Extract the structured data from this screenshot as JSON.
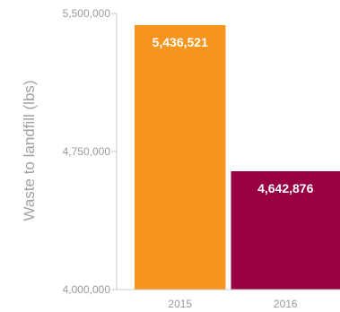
{
  "chart_data": {
    "type": "bar",
    "categories": [
      "2015",
      "2016"
    ],
    "values": [
      5436521,
      4642876
    ],
    "value_labels": [
      "5,436,521",
      "4,642,876"
    ],
    "colors": [
      "#f7941d",
      "#990044"
    ],
    "xlabel": "",
    "ylabel": "Waste to landfill (lbs)",
    "ylim": [
      4000000,
      5500000
    ],
    "yticks": [
      4000000,
      4750000,
      5500000
    ],
    "ytick_labels": [
      "4,000,000",
      "4,750,000",
      "5,500,000"
    ],
    "grid": false,
    "legend": "none"
  }
}
